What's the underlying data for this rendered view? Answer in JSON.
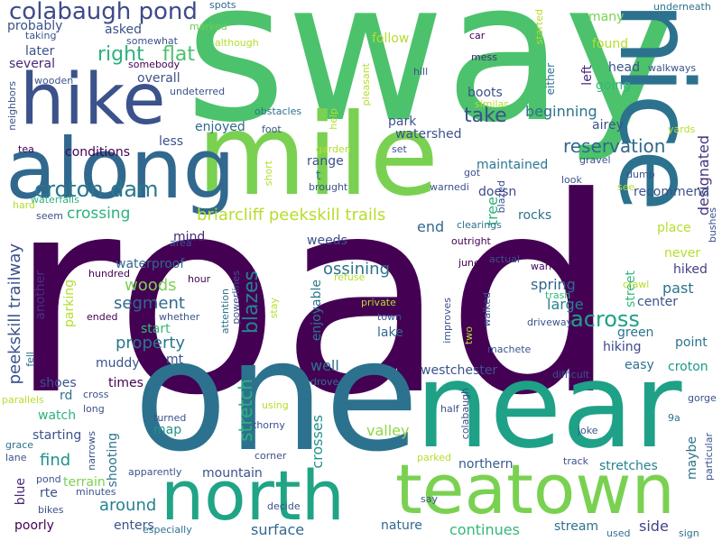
{
  "palette": {
    "dark_purple": "#440154",
    "indigo": "#3b528b",
    "blue": "#31688e",
    "teal": "#21918c",
    "green_teal": "#1fa187",
    "green": "#35b779",
    "lime": "#6ece58",
    "yellow_green": "#b5de2b",
    "background": "#ffffff"
  },
  "words": [
    {
      "text": "road",
      "color": "#440154"
    },
    {
      "text": "sway",
      "color": "#4cc26c"
    },
    {
      "text": "one",
      "color": "#2c728e"
    },
    {
      "text": "near",
      "color": "#1fa187"
    },
    {
      "text": "mile",
      "color": "#7ad151"
    },
    {
      "text": "nice",
      "color": "#2c728e"
    },
    {
      "text": "along",
      "color": "#31688e"
    },
    {
      "text": "hike",
      "color": "#3b528b"
    },
    {
      "text": "north",
      "color": "#20a486"
    },
    {
      "text": "teatown",
      "color": "#7ad151"
    },
    {
      "text": "colabaugh pond",
      "color": "#3e4a89"
    },
    {
      "text": "croton dam",
      "color": "#2a788e"
    },
    {
      "text": "briarcliff peekskill trails",
      "color": "#b5de2b"
    },
    {
      "text": "peekskill trailway",
      "color": "#3b528b"
    },
    {
      "text": "right",
      "color": "#2db27d"
    },
    {
      "text": "flat",
      "color": "#4ac16d"
    },
    {
      "text": "blazes",
      "color": "#26828e"
    },
    {
      "text": "across",
      "color": "#1fa187"
    },
    {
      "text": "reservation",
      "color": "#31688e"
    },
    {
      "text": "designated",
      "color": "#46337e"
    },
    {
      "text": "crossing",
      "color": "#2db27d"
    },
    {
      "text": "take",
      "color": "#3b528b"
    },
    {
      "text": "property",
      "color": "#2a788e"
    },
    {
      "text": "woods",
      "color": "#7ad151"
    },
    {
      "text": "segment",
      "color": "#31688e"
    },
    {
      "text": "ossining",
      "color": "#2c728e"
    },
    {
      "text": "around",
      "color": "#26828e"
    },
    {
      "text": "find",
      "color": "#21918c"
    },
    {
      "text": "surface",
      "color": "#31688e"
    },
    {
      "text": "continues",
      "color": "#35b779"
    },
    {
      "text": "northern",
      "color": "#365c8d"
    },
    {
      "text": "stretches",
      "color": "#26828e"
    },
    {
      "text": "mountain",
      "color": "#3b528b"
    },
    {
      "text": "nature",
      "color": "#31688e"
    },
    {
      "text": "stream",
      "color": "#2c728e"
    },
    {
      "text": "side",
      "color": "#414487"
    },
    {
      "text": "valley",
      "color": "#8fd744"
    },
    {
      "text": "crosses",
      "color": "#21918c"
    },
    {
      "text": "enjoyable",
      "color": "#2a788e"
    },
    {
      "text": "stretch",
      "color": "#2db27d"
    },
    {
      "text": "westchester",
      "color": "#3b528b"
    },
    {
      "text": "well",
      "color": "#2c728e"
    },
    {
      "text": "lake",
      "color": "#31688e"
    },
    {
      "text": "large",
      "color": "#26828e"
    },
    {
      "text": "spring",
      "color": "#31688e"
    },
    {
      "text": "past",
      "color": "#2c728e"
    },
    {
      "text": "hiked",
      "color": "#433e85"
    },
    {
      "text": "point",
      "color": "#2c728e"
    },
    {
      "text": "croton",
      "color": "#1f998a"
    },
    {
      "text": "easy",
      "color": "#2c728e"
    },
    {
      "text": "hiking",
      "color": "#3e4a89"
    },
    {
      "text": "green",
      "color": "#2c728e"
    },
    {
      "text": "airey",
      "color": "#3b528b"
    },
    {
      "text": "beginning",
      "color": "#2c728e"
    },
    {
      "text": "watershed",
      "color": "#3b528b"
    },
    {
      "text": "park",
      "color": "#3b528b"
    },
    {
      "text": "maintained",
      "color": "#2a788e"
    },
    {
      "text": "doesn",
      "color": "#3e4a89"
    },
    {
      "text": "rocks",
      "color": "#2c728e"
    },
    {
      "text": "recommend",
      "color": "#3b528b"
    },
    {
      "text": "place",
      "color": "#b5de2b"
    },
    {
      "text": "never",
      "color": "#b5de2b"
    },
    {
      "text": "center",
      "color": "#3b528b"
    },
    {
      "text": "street",
      "color": "#35b779"
    },
    {
      "text": "tree",
      "color": "#2db27d"
    },
    {
      "text": "end",
      "color": "#31688e"
    },
    {
      "text": "head",
      "color": "#3b528b"
    },
    {
      "text": "going",
      "color": "#35b779"
    },
    {
      "text": "left",
      "color": "#482878"
    },
    {
      "text": "found",
      "color": "#b5de2b"
    },
    {
      "text": "many",
      "color": "#7ad151"
    },
    {
      "text": "follow",
      "color": "#b5de2b"
    },
    {
      "text": "overall",
      "color": "#3b528b"
    },
    {
      "text": "asked",
      "color": "#3b528b"
    },
    {
      "text": "later",
      "color": "#3b528b"
    },
    {
      "text": "several",
      "color": "#482878"
    },
    {
      "text": "probably",
      "color": "#3b528b"
    },
    {
      "text": "enjoyed",
      "color": "#31688e"
    },
    {
      "text": "less",
      "color": "#3b528b"
    },
    {
      "text": "conditions",
      "color": "#440154"
    },
    {
      "text": "range",
      "color": "#3b528b"
    },
    {
      "text": "t",
      "color": "#31688e"
    },
    {
      "text": "brought",
      "color": "#3b528b"
    },
    {
      "text": "mind",
      "color": "#482878"
    },
    {
      "text": "weeds",
      "color": "#3b528b"
    },
    {
      "text": "waterproof",
      "color": "#31688e"
    },
    {
      "text": "another",
      "color": "#46337e"
    },
    {
      "text": "parking",
      "color": "#b5de2b"
    },
    {
      "text": "start",
      "color": "#35b779"
    },
    {
      "text": "muddy",
      "color": "#3b528b"
    },
    {
      "text": "mt",
      "color": "#3b528b"
    },
    {
      "text": "shoes",
      "color": "#3b528b"
    },
    {
      "text": "times",
      "color": "#440154"
    },
    {
      "text": "rd",
      "color": "#2c728e"
    },
    {
      "text": "watch",
      "color": "#2db27d"
    },
    {
      "text": "starting",
      "color": "#3b528b"
    },
    {
      "text": "map",
      "color": "#21918c"
    },
    {
      "text": "shooting",
      "color": "#2c728e"
    },
    {
      "text": "terrain",
      "color": "#7ad151"
    },
    {
      "text": "rte",
      "color": "#3b528b"
    },
    {
      "text": "blue",
      "color": "#482878"
    },
    {
      "text": "poorly",
      "color": "#440154"
    },
    {
      "text": "enters",
      "color": "#3b528b"
    },
    {
      "text": "maybe",
      "color": "#2c728e"
    },
    {
      "text": "boots",
      "color": "#3b528b"
    },
    {
      "text": "either",
      "color": "#2c728e"
    },
    {
      "text": "walkways",
      "color": "#3b528b"
    },
    {
      "text": "underneath",
      "color": "#2c728e"
    },
    {
      "text": "car",
      "color": "#440154"
    },
    {
      "text": "mess",
      "color": "#482878"
    },
    {
      "text": "hill",
      "color": "#3b528b"
    },
    {
      "text": "similar",
      "color": "#b5de2b"
    },
    {
      "text": "obstacles",
      "color": "#2c728e"
    },
    {
      "text": "foot",
      "color": "#3b528b"
    },
    {
      "text": "undeterred",
      "color": "#3b528b"
    },
    {
      "text": "somebody",
      "color": "#440154"
    },
    {
      "text": "somewhat",
      "color": "#3b528b"
    },
    {
      "text": "marked",
      "color": "#6ece58"
    },
    {
      "text": "spots",
      "color": "#31688e"
    },
    {
      "text": "started",
      "color": "#b5de2b"
    },
    {
      "text": "although",
      "color": "#b5de2b"
    },
    {
      "text": "taking",
      "color": "#3b528b"
    },
    {
      "text": "wooden",
      "color": "#3b528b"
    },
    {
      "text": "neighbors",
      "color": "#3b528b"
    },
    {
      "text": "tea",
      "color": "#440154"
    },
    {
      "text": "waterfalls",
      "color": "#2db27d"
    },
    {
      "text": "hard",
      "color": "#b5de2b"
    },
    {
      "text": "seem",
      "color": "#3b528b"
    },
    {
      "text": "area",
      "color": "#3b528b"
    },
    {
      "text": "hundred",
      "color": "#440154"
    },
    {
      "text": "hour",
      "color": "#440154"
    },
    {
      "text": "ended",
      "color": "#440154"
    },
    {
      "text": "whether",
      "color": "#3b528b"
    },
    {
      "text": "powerlines",
      "color": "#3b528b"
    },
    {
      "text": "attention",
      "color": "#2c728e"
    },
    {
      "text": "stay",
      "color": "#b5de2b"
    },
    {
      "text": "fell",
      "color": "#2c728e"
    },
    {
      "text": "parallels",
      "color": "#b5de2b"
    },
    {
      "text": "cross",
      "color": "#3b528b"
    },
    {
      "text": "long",
      "color": "#3b528b"
    },
    {
      "text": "narrows",
      "color": "#3b528b"
    },
    {
      "text": "grace",
      "color": "#2c728e"
    },
    {
      "text": "lane",
      "color": "#3b528b"
    },
    {
      "text": "pond",
      "color": "#3b528b"
    },
    {
      "text": "bikes",
      "color": "#3b528b"
    },
    {
      "text": "minutes",
      "color": "#3b528b"
    },
    {
      "text": "apparently",
      "color": "#3b528b"
    },
    {
      "text": "especially",
      "color": "#2c728e"
    },
    {
      "text": "turned",
      "color": "#3b528b"
    },
    {
      "text": "thorny",
      "color": "#3b528b"
    },
    {
      "text": "corner",
      "color": "#3b528b"
    },
    {
      "text": "decide",
      "color": "#3b528b"
    },
    {
      "text": "using",
      "color": "#b5de2b"
    },
    {
      "text": "drove",
      "color": "#2c728e"
    },
    {
      "text": "half",
      "color": "#3b528b"
    },
    {
      "text": "colabaugh",
      "color": "#3b528b"
    },
    {
      "text": "parked",
      "color": "#b5de2b"
    },
    {
      "text": "say",
      "color": "#3b528b"
    },
    {
      "text": "joke",
      "color": "#3b528b"
    },
    {
      "text": "track",
      "color": "#3b528b"
    },
    {
      "text": "used",
      "color": "#2c728e"
    },
    {
      "text": "sign",
      "color": "#2c728e"
    },
    {
      "text": "9a",
      "color": "#2c728e"
    },
    {
      "text": "particular",
      "color": "#3b528b"
    },
    {
      "text": "gorge",
      "color": "#3b528b"
    },
    {
      "text": "difficult",
      "color": "#3b528b"
    },
    {
      "text": "machete",
      "color": "#3b528b"
    },
    {
      "text": "walked",
      "color": "#3b528b"
    },
    {
      "text": "trash",
      "color": "#35b779"
    },
    {
      "text": "driveway",
      "color": "#3b528b"
    },
    {
      "text": "warned",
      "color": "#440154"
    },
    {
      "text": "crawl",
      "color": "#b5de2b"
    },
    {
      "text": "bushes",
      "color": "#3b528b"
    },
    {
      "text": "juneok",
      "color": "#440154"
    },
    {
      "text": "outright",
      "color": "#440154"
    },
    {
      "text": "actual",
      "color": "#3b528b"
    },
    {
      "text": "clearings",
      "color": "#2c728e"
    },
    {
      "text": "blazed",
      "color": "#3b528b"
    },
    {
      "text": "warnedi",
      "color": "#3b528b"
    },
    {
      "text": "got",
      "color": "#3b528b"
    },
    {
      "text": "look",
      "color": "#3b528b"
    },
    {
      "text": "dump",
      "color": "#3b528b"
    },
    {
      "text": "see",
      "color": "#b5de2b"
    },
    {
      "text": "gravel",
      "color": "#3b528b"
    },
    {
      "text": "yards",
      "color": "#b5de2b"
    },
    {
      "text": "set",
      "color": "#3b528b"
    },
    {
      "text": "garden",
      "color": "#b5de2b"
    },
    {
      "text": "short",
      "color": "#b5de2b"
    },
    {
      "text": "help",
      "color": "#b5de2b"
    },
    {
      "text": "pleasant",
      "color": "#b5de2b"
    },
    {
      "text": "private",
      "color": "#b5de2b"
    },
    {
      "text": "refuse",
      "color": "#b5de2b"
    },
    {
      "text": "improves",
      "color": "#3b528b"
    },
    {
      "text": "two",
      "color": "#b5de2b"
    },
    {
      "text": "town",
      "color": "#3b528b"
    }
  ]
}
